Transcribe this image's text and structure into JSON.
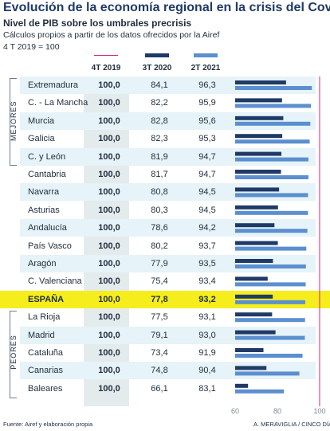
{
  "header": {
    "title": "Evolución de la economía regional en la crisis del Covid",
    "subtitle": "Nivel de PIB sobre los umbrales precrisis",
    "source_note": "Cálculos propios a partir de los datos ofrecidos por la Airef",
    "base_note": "4 T 2019 = 100"
  },
  "chart_data": {
    "type": "bar",
    "columns": [
      "4T 2019",
      "3T 2020",
      "2T 2021"
    ],
    "series": [
      {
        "name": "3T 2020",
        "color": "#1f3a66"
      },
      {
        "name": "2T 2021",
        "color": "#5b8fcf"
      }
    ],
    "reference": {
      "name": "4T 2019",
      "value": 100,
      "color": "#d8207a"
    },
    "rows": [
      {
        "region": "Extremadura",
        "base": "100,0",
        "v2020": 84.1,
        "v2021": 96.3,
        "t2020": "84,1",
        "t2021": "96,3"
      },
      {
        "region": "C. - La Mancha",
        "base": "100,0",
        "v2020": 82.2,
        "v2021": 95.9,
        "t2020": "82,2",
        "t2021": "95,9"
      },
      {
        "region": "Murcia",
        "base": "100,0",
        "v2020": 82.8,
        "v2021": 95.6,
        "t2020": "82,8",
        "t2021": "95,6"
      },
      {
        "region": "Galicia",
        "base": "100,0",
        "v2020": 82.3,
        "v2021": 95.3,
        "t2020": "82,3",
        "t2021": "95,3"
      },
      {
        "region": "C. y León",
        "base": "100,0",
        "v2020": 81.9,
        "v2021": 94.7,
        "t2020": "81,9",
        "t2021": "94,7"
      },
      {
        "region": "Cantabria",
        "base": "100,0",
        "v2020": 81.7,
        "v2021": 94.7,
        "t2020": "81,7",
        "t2021": "94,7"
      },
      {
        "region": "Navarra",
        "base": "100,0",
        "v2020": 80.8,
        "v2021": 94.5,
        "t2020": "80,8",
        "t2021": "94,5"
      },
      {
        "region": "Asturias",
        "base": "100,0",
        "v2020": 80.3,
        "v2021": 94.5,
        "t2020": "80,3",
        "t2021": "94,5"
      },
      {
        "region": "Andalucía",
        "base": "100,0",
        "v2020": 78.6,
        "v2021": 94.2,
        "t2020": "78,6",
        "t2021": "94,2"
      },
      {
        "region": "País Vasco",
        "base": "100,0",
        "v2020": 80.2,
        "v2021": 93.7,
        "t2020": "80,2",
        "t2021": "93,7"
      },
      {
        "region": "Aragón",
        "base": "100,0",
        "v2020": 77.9,
        "v2021": 93.5,
        "t2020": "77,9",
        "t2021": "93,5"
      },
      {
        "region": "C. Valenciana",
        "base": "100,0",
        "v2020": 75.4,
        "v2021": 93.4,
        "t2020": "75,4",
        "t2021": "93,4"
      },
      {
        "region": "ESPAÑA",
        "base": "100,0",
        "v2020": 77.8,
        "v2021": 93.2,
        "t2020": "77,8",
        "t2021": "93,2",
        "highlight": true
      },
      {
        "region": "La Rioja",
        "base": "100,0",
        "v2020": 77.5,
        "v2021": 93.1,
        "t2020": "77,5",
        "t2021": "93,1"
      },
      {
        "region": "Madrid",
        "base": "100,0",
        "v2020": 79.1,
        "v2021": 93.0,
        "t2020": "79,1",
        "t2021": "93,0"
      },
      {
        "region": "Cataluña",
        "base": "100,0",
        "v2020": 73.4,
        "v2021": 91.9,
        "t2020": "73,4",
        "t2021": "91,9"
      },
      {
        "region": "Canarias",
        "base": "100,0",
        "v2020": 74.8,
        "v2021": 90.4,
        "t2020": "74,8",
        "t2021": "90,4"
      },
      {
        "region": "Baleares",
        "base": "100,0",
        "v2020": 66.1,
        "v2021": 83.1,
        "t2020": "66,1",
        "t2021": "83,1"
      }
    ],
    "groups": [
      {
        "label": "MEJORES"
      },
      {
        "label": "PEORES"
      }
    ],
    "xlim": [
      60,
      100
    ],
    "xticks": [
      "60",
      "80",
      "100"
    ]
  },
  "footer": {
    "source": "Fuente: Airef y elaboración propia",
    "credit": "A. MERAVIGLIA / CINCO DÍAS"
  }
}
